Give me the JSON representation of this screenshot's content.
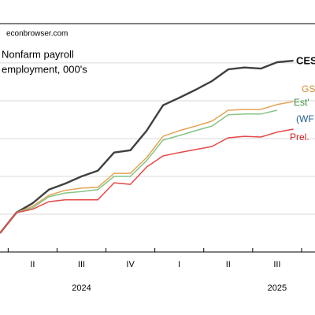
{
  "chart_data": {
    "type": "line",
    "watermark": "econbrowser.com",
    "title_lines": [
      "Nonfarm payroll",
      "employment, 000's"
    ],
    "categories": [
      null,
      null,
      "II",
      null,
      null,
      "III",
      null,
      null,
      "IV",
      null,
      null,
      "I",
      null,
      null,
      "II",
      null,
      null,
      "III",
      null
    ],
    "year_categories": [
      null,
      null,
      null,
      null,
      null,
      "2024",
      null,
      null,
      null,
      null,
      null,
      null,
      null,
      null,
      null,
      null,
      null,
      "2025",
      null
    ],
    "ylim": [
      0,
      6.04
    ],
    "y_gridlines": [
      1,
      2,
      3,
      4,
      5
    ],
    "grid": true,
    "series": [
      {
        "name": "CES",
        "color": "#404040",
        "label_color": "#111111",
        "width": 2.4,
        "values": [
          0.5,
          1.04,
          1.29,
          1.65,
          1.81,
          2.0,
          2.15,
          2.63,
          2.69,
          3.21,
          3.88,
          4.08,
          4.29,
          4.52,
          4.83,
          4.88,
          4.85,
          5.02,
          5.06
        ]
      },
      {
        "name": "GS",
        "color": "#e3a455",
        "label_color": "#d08a30",
        "width": 1.5,
        "values": [
          0.5,
          1.04,
          1.21,
          1.5,
          1.63,
          1.69,
          1.71,
          2.08,
          2.08,
          2.5,
          3.06,
          3.21,
          3.33,
          3.46,
          3.75,
          3.77,
          3.77,
          3.9,
          3.98
        ]
      },
      {
        "name": "Est'",
        "color": "#86c486",
        "label_color": "#3a8a3a",
        "width": 1.5,
        "values": [
          0.5,
          1.04,
          1.17,
          1.46,
          1.56,
          1.6,
          1.65,
          2.0,
          2.0,
          2.42,
          2.96,
          3.08,
          3.21,
          3.33,
          3.63,
          3.65,
          3.65,
          3.75,
          null
        ]
      },
      {
        "name": "Prel.",
        "color": "#e54848",
        "label_color": "#d02020",
        "width": 1.5,
        "values": [
          0.5,
          1.04,
          1.13,
          1.33,
          1.38,
          1.38,
          1.38,
          1.83,
          1.79,
          2.25,
          2.54,
          2.63,
          2.71,
          2.79,
          3.02,
          3.06,
          3.04,
          3.17,
          3.25
        ]
      }
    ],
    "extra_label": {
      "text": "(WF",
      "color": "#1f5f8f"
    }
  }
}
